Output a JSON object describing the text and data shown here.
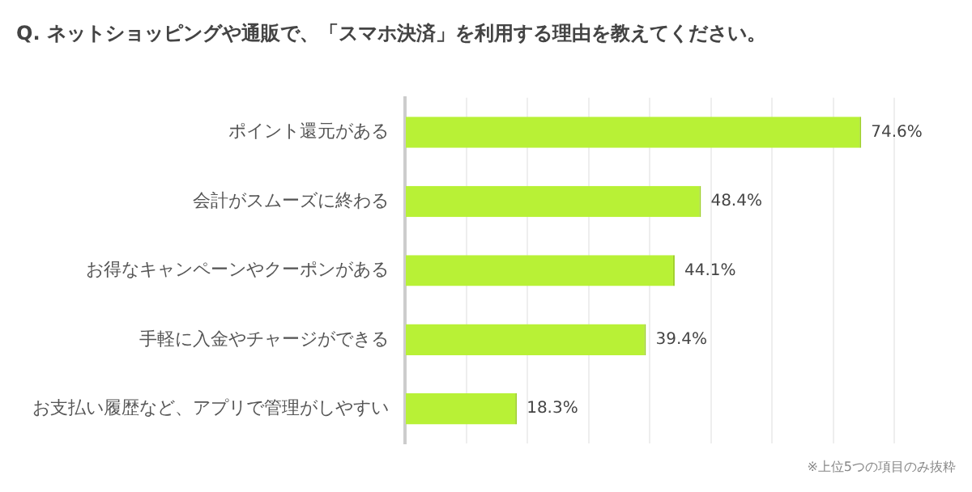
{
  "chart_data": {
    "type": "bar",
    "orientation": "horizontal",
    "title": "Q. ネットショッピングや通販で、「スマホ決済」を利用する理由を教えてください。",
    "categories": [
      "ポイント還元がある",
      "会計がスムーズに終わる",
      "お得なキャンペーンやクーポンがある",
      "手軽に入金やチャージができる",
      "お支払い履歴など、アプリで管理がしやすい"
    ],
    "values": [
      74.6,
      48.4,
      44.1,
      39.4,
      18.3
    ],
    "color": "#b8f136",
    "value_labels": [
      "74.6%",
      "48.4%",
      "44.1%",
      "39.4%",
      "18.3%"
    ],
    "xlim": [
      0,
      80
    ],
    "xticks": [
      {
        "value": 0,
        "label": null
      },
      {
        "value": 10,
        "label": null
      },
      {
        "value": 20,
        "label": null
      },
      {
        "value": 30,
        "label": null
      },
      {
        "value": 40,
        "label": null
      },
      {
        "value": 50,
        "label": null
      },
      {
        "value": 60,
        "label": null
      },
      {
        "value": 70,
        "label": null
      },
      {
        "value": 80,
        "label": null
      }
    ],
    "grid": "x",
    "tick_labels": "y",
    "legend": false,
    "annotations": [
      "※上位5つの項目のみ抜粋"
    ]
  }
}
